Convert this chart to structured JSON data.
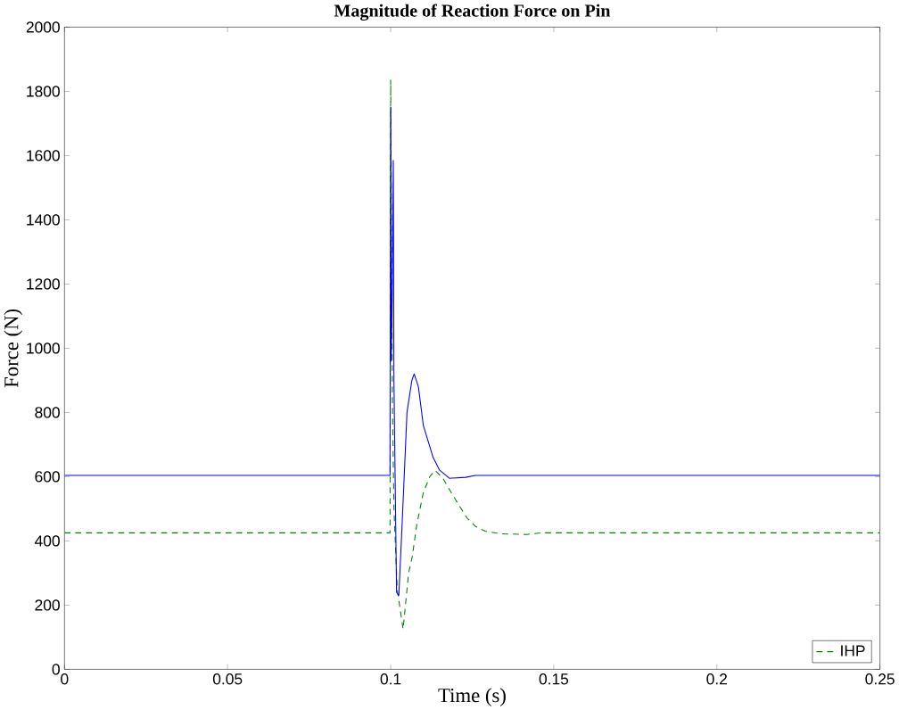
{
  "chart_data": {
    "type": "line",
    "title": "Magnitude of Reaction Force on Pin",
    "xlabel": "Time (s)",
    "ylabel": "Force (N)",
    "xlim": [
      0,
      0.25
    ],
    "ylim": [
      0,
      2000
    ],
    "xticks": [
      0,
      0.05,
      0.1,
      0.15,
      0.2,
      0.25
    ],
    "yticks": [
      0,
      200,
      400,
      600,
      800,
      1000,
      1200,
      1400,
      1600,
      1800,
      2000
    ],
    "grid": false,
    "legend": "bottom right",
    "series": [
      {
        "color": "#0000ff",
        "line_style": "solid",
        "x": [
          0,
          0.0998,
          0.1,
          0.1002,
          0.1005,
          0.1008,
          0.101,
          0.1018,
          0.1025,
          0.1035,
          0.105,
          0.1065,
          0.1072,
          0.1085,
          0.11,
          0.113,
          0.115,
          0.118,
          0.123,
          0.126,
          0.25
        ],
        "values": [
          604,
          604,
          1750,
          960,
          1200,
          1585,
          900,
          240,
          230,
          450,
          800,
          900,
          920,
          880,
          760,
          660,
          620,
          595,
          598,
          604,
          604
        ]
      },
      {
        "name": "IHP",
        "color": "#008000",
        "line_style": "dashed",
        "x": [
          0,
          0.0998,
          0.1,
          0.1005,
          0.101,
          0.102,
          0.1038,
          0.1055,
          0.1066,
          0.108,
          0.11,
          0.112,
          0.1136,
          0.116,
          0.118,
          0.121,
          0.1235,
          0.126,
          0.129,
          0.134,
          0.1417,
          0.146,
          0.25
        ],
        "values": [
          425,
          425,
          1835,
          850,
          500,
          250,
          125,
          300,
          350,
          450,
          550,
          600,
          620,
          595,
          560,
          510,
          470,
          445,
          430,
          422,
          420,
          425,
          425
        ]
      }
    ]
  }
}
